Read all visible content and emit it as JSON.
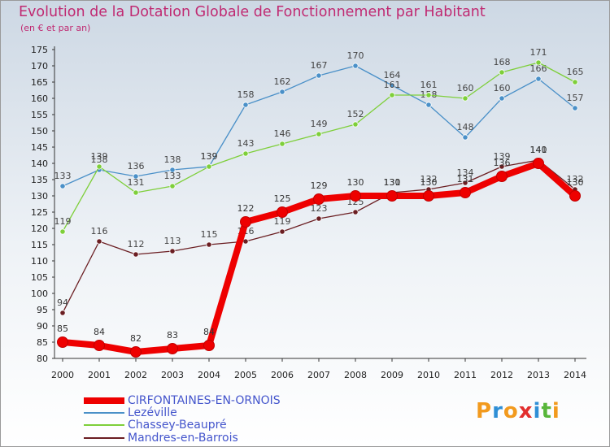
{
  "chart_data": {
    "type": "line",
    "title": "Evolution de la Dotation Globale de Fonctionnement par Habitant",
    "subtitle": "(en € et par an)",
    "x": [
      "2000",
      "2001",
      "2002",
      "2003",
      "2004",
      "2005",
      "2006",
      "2007",
      "2008",
      "2009",
      "2010",
      "2011",
      "2012",
      "2013",
      "2014"
    ],
    "ylim": [
      80,
      175
    ],
    "yticks": [
      80,
      85,
      90,
      95,
      100,
      105,
      110,
      115,
      120,
      125,
      130,
      135,
      140,
      145,
      150,
      155,
      160,
      165,
      170,
      175
    ],
    "grid": false,
    "legend_position": "bottom-left",
    "series": [
      {
        "name": "CIRFONTAINES-EN-ORNOIS",
        "color": "#ee0000",
        "values": [
          85,
          84,
          82,
          83,
          84,
          122,
          125,
          129,
          130,
          130,
          130,
          131,
          136,
          140,
          130
        ]
      },
      {
        "name": "Lezéville",
        "color": "#4a90c8",
        "values": [
          133,
          138,
          136,
          138,
          139,
          158,
          162,
          167,
          170,
          164,
          158,
          148,
          160,
          166,
          157
        ]
      },
      {
        "name": "Chassey-Beaupré",
        "color": "#7ecf3a",
        "values": [
          119,
          139,
          131,
          133,
          139,
          143,
          146,
          149,
          152,
          161,
          161,
          160,
          168,
          171,
          165
        ]
      },
      {
        "name": "Mandres-en-Barrois",
        "color": "#6b1e22",
        "values": [
          94,
          116,
          112,
          113,
          115,
          116,
          119,
          123,
          125,
          131,
          132,
          134,
          139,
          141,
          132
        ]
      }
    ]
  },
  "logo": {
    "text": "Proxiti",
    "letters": [
      "P",
      "r",
      "o",
      "x",
      "i",
      "t",
      "i"
    ],
    "colors": [
      "#f29a1e",
      "#2f8fd6",
      "#f29a1e",
      "#e22e2e",
      "#2f8fd6",
      "#58b63a",
      "#f29a1e"
    ]
  }
}
